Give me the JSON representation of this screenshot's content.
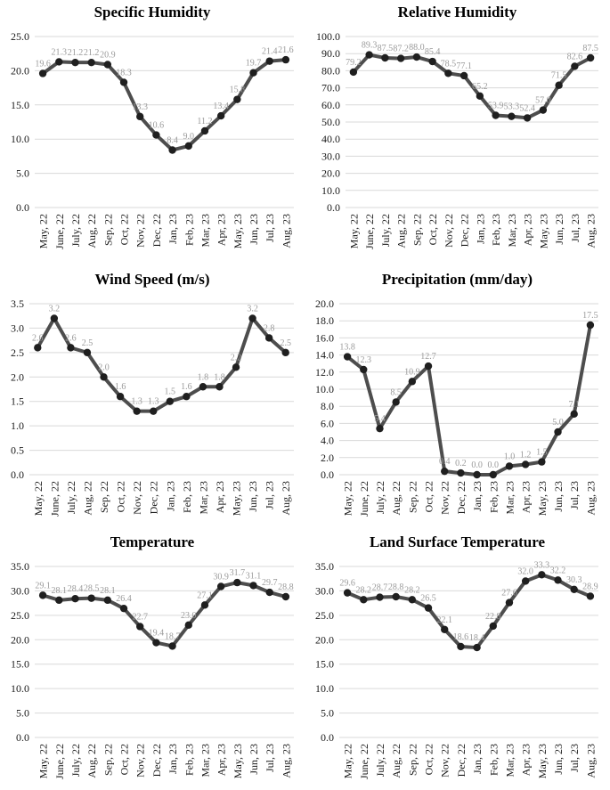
{
  "figure": {
    "background": "#ffffff"
  },
  "style": {
    "line_color": "#4d4d4d",
    "marker_color": "#1f1f1f",
    "grid_color": "#d9d9d9",
    "tick_color": "#1a1a1a",
    "data_label_color": "#9a9a9a"
  },
  "chart_data": [
    {
      "type": "line",
      "title": "Specific Humidity",
      "xlabel": "",
      "ylabel": "",
      "legend": "none",
      "grid": true,
      "ylim": [
        0,
        25
      ],
      "ystep": 5,
      "categories": [
        "May, 22",
        "June, 22",
        "July, 22",
        "Aug, 22",
        "Sep, 22",
        "Oct, 22",
        "Nov, 22",
        "Dec, 22",
        "Jan, 23",
        "Feb, 23",
        "Mar, 23",
        "Apr, 23",
        "May, 23",
        "Jun, 23",
        "Jul, 23",
        "Aug, 23"
      ],
      "values": [
        19.6,
        21.3,
        21.2,
        21.2,
        20.9,
        18.3,
        13.3,
        10.6,
        8.4,
        9.0,
        11.2,
        13.4,
        15.8,
        19.7,
        21.4,
        21.6
      ]
    },
    {
      "type": "line",
      "title": "Relative Humidity",
      "xlabel": "",
      "ylabel": "",
      "legend": "none",
      "grid": true,
      "ylim": [
        0,
        100
      ],
      "ystep": 10,
      "categories": [
        "May, 22",
        "June, 22",
        "July, 22",
        "Aug, 22",
        "Sep, 22",
        "Oct, 22",
        "Nov, 22",
        "Dec, 22",
        "Jan, 23",
        "Feb, 23",
        "Mar, 23",
        "Apr, 23",
        "May, 23",
        "Jun, 23",
        "Jul, 23",
        "Aug, 23"
      ],
      "values": [
        79.2,
        89.3,
        87.5,
        87.2,
        88.0,
        85.4,
        78.5,
        77.1,
        65.2,
        53.9,
        53.3,
        52.4,
        57.0,
        71.5,
        82.6,
        87.5
      ]
    },
    {
      "type": "line",
      "title": "Wind Speed (m/s)",
      "xlabel": "",
      "ylabel": "",
      "legend": "none",
      "grid": true,
      "ylim": [
        0,
        3.5
      ],
      "ystep": 0.5,
      "categories": [
        "May, 22",
        "June, 22",
        "July, 22",
        "Aug, 22",
        "Sep, 22",
        "Oct, 22",
        "Nov, 22",
        "Dec, 22",
        "Jan, 23",
        "Feb, 23",
        "Mar, 23",
        "Apr, 23",
        "May, 23",
        "Jun, 23",
        "Jul, 23",
        "Aug, 23"
      ],
      "values": [
        2.6,
        3.2,
        2.6,
        2.5,
        2.0,
        1.6,
        1.3,
        1.3,
        1.5,
        1.6,
        1.8,
        1.8,
        2.2,
        3.2,
        2.8,
        2.5
      ]
    },
    {
      "type": "line",
      "title": "Precipitation (mm/day)",
      "xlabel": "",
      "ylabel": "",
      "legend": "none",
      "grid": true,
      "ylim": [
        0,
        20
      ],
      "ystep": 2,
      "categories": [
        "May, 22",
        "June, 22",
        "July, 22",
        "Aug, 22",
        "Sep, 22",
        "Oct, 22",
        "Nov, 22",
        "Dec, 22",
        "Jan, 23",
        "Feb, 23",
        "Mar, 23",
        "Apr, 23",
        "May, 23",
        "Jun, 23",
        "Jul, 23",
        "Aug, 23"
      ],
      "values": [
        13.8,
        12.3,
        5.4,
        8.5,
        10.9,
        12.7,
        0.4,
        0.2,
        0.0,
        0.0,
        1.0,
        1.2,
        1.5,
        5.0,
        7.1,
        17.5
      ]
    },
    {
      "type": "line",
      "title": "Temperature",
      "xlabel": "",
      "ylabel": "",
      "legend": "none",
      "grid": true,
      "ylim": [
        0,
        35
      ],
      "ystep": 5,
      "categories": [
        "May, 22",
        "June, 22",
        "July, 22",
        "Aug, 22",
        "Sep, 22",
        "Oct, 22",
        "Nov, 22",
        "Dec, 22",
        "Jan, 23",
        "Feb, 23",
        "Mar, 23",
        "Apr, 23",
        "May, 23",
        "Jun, 23",
        "Jul, 23",
        "Aug, 23"
      ],
      "values": [
        29.1,
        28.1,
        28.4,
        28.5,
        28.1,
        26.4,
        22.7,
        19.4,
        18.7,
        23.0,
        27.1,
        30.9,
        31.7,
        31.1,
        29.7,
        28.8
      ]
    },
    {
      "type": "line",
      "title": "Land Surface Temperature",
      "xlabel": "",
      "ylabel": "",
      "legend": "none",
      "grid": true,
      "ylim": [
        0,
        35
      ],
      "ystep": 5,
      "categories": [
        "May, 22",
        "June, 22",
        "July, 22",
        "Aug, 22",
        "Sep, 22",
        "Oct, 22",
        "Nov, 22",
        "Dec, 22",
        "Jan, 23",
        "Feb, 23",
        "Mar, 23",
        "Apr, 23",
        "May, 23",
        "Jun, 23",
        "Jul, 23",
        "Aug, 23"
      ],
      "values": [
        29.6,
        28.2,
        28.7,
        28.8,
        28.2,
        26.5,
        22.1,
        18.6,
        18.4,
        22.8,
        27.6,
        32.0,
        33.3,
        32.2,
        30.3,
        28.9
      ]
    }
  ]
}
